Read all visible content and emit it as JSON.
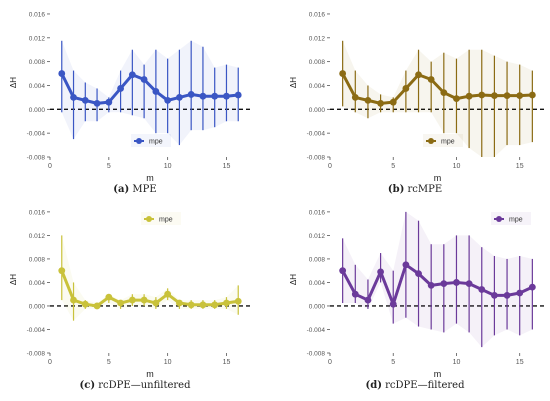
{
  "chart_data": [
    {
      "type": "line",
      "panel_label": "(a)",
      "panel_name": "MPE",
      "xlabel": "m",
      "ylabel": "ΔH",
      "xlim": [
        0,
        17
      ],
      "ylim": [
        -0.008,
        0.017
      ],
      "xticks": [
        0,
        5,
        10,
        15
      ],
      "yticks": [
        0.016,
        0.012,
        0.008,
        0.004,
        0.0,
        -0.004,
        -0.008
      ],
      "ytick_labels": [
        "0.016",
        "0.012",
        "0.008",
        "0.004",
        "0.000",
        "-0.004",
        "-0.008"
      ],
      "legend": "center-bottom",
      "reference_line": 0,
      "series": [
        {
          "name": "mpe",
          "color": "#3a56c4",
          "x": [
            1,
            2,
            3,
            4,
            5,
            6,
            7,
            8,
            9,
            10,
            11,
            12,
            13,
            14,
            15,
            16
          ],
          "y": [
            0.006,
            0.002,
            0.0015,
            0.001,
            0.0012,
            0.0035,
            0.0058,
            0.005,
            0.003,
            0.0015,
            0.002,
            0.0025,
            0.0022,
            0.0022,
            0.0022,
            0.0024
          ],
          "err_low": [
            -0.0005,
            -0.005,
            -0.002,
            -0.002,
            -0.0005,
            -0.0005,
            -0.001,
            -0.0015,
            -0.004,
            -0.004,
            -0.006,
            -0.0035,
            -0.0035,
            -0.003,
            -0.002,
            -0.002
          ],
          "err_high": [
            0.0115,
            0.0065,
            0.0045,
            0.0035,
            0.002,
            0.0065,
            0.01,
            0.0075,
            0.01,
            0.0085,
            0.01,
            0.0115,
            0.0105,
            0.007,
            0.0075,
            0.007
          ]
        }
      ]
    },
    {
      "type": "line",
      "panel_label": "(b)",
      "panel_name": "rcMPE",
      "xlabel": "m",
      "ylabel": "ΔH",
      "xlim": [
        0,
        17
      ],
      "ylim": [
        -0.008,
        0.017
      ],
      "xticks": [
        0,
        5,
        10,
        15
      ],
      "yticks": [
        0.016,
        0.012,
        0.008,
        0.004,
        0.0,
        -0.004,
        -0.008
      ],
      "ytick_labels": [
        "0.016",
        "0.012",
        "0.008",
        "0.004",
        "0.000",
        "-0.004",
        "-0.008"
      ],
      "legend": "center-bottom",
      "reference_line": 0,
      "series": [
        {
          "name": "mpe",
          "color": "#8b6b14",
          "x": [
            1,
            2,
            3,
            4,
            5,
            6,
            7,
            8,
            9,
            10,
            11,
            12,
            13,
            14,
            15,
            16
          ],
          "y": [
            0.006,
            0.002,
            0.0015,
            0.001,
            0.0012,
            0.0035,
            0.0058,
            0.005,
            0.0028,
            0.0018,
            0.0022,
            0.0024,
            0.0023,
            0.0023,
            0.0023,
            0.0024
          ],
          "err_low": [
            0.0005,
            -0.0005,
            -0.0015,
            -0.0005,
            -0.0005,
            -0.0005,
            -0.0005,
            -0.0005,
            -0.004,
            -0.004,
            -0.0065,
            -0.008,
            -0.008,
            -0.006,
            -0.006,
            -0.0055
          ],
          "err_high": [
            0.0115,
            0.0065,
            0.004,
            0.0025,
            0.002,
            0.0065,
            0.01,
            0.008,
            0.0095,
            0.0085,
            0.01,
            0.01,
            0.009,
            0.008,
            0.0075,
            0.0065
          ]
        }
      ]
    },
    {
      "type": "line",
      "panel_label": "(c)",
      "panel_name": "rcDPE—unfiltered",
      "xlabel": "m",
      "ylabel": "ΔH",
      "xlim": [
        0,
        17
      ],
      "ylim": [
        -0.008,
        0.017
      ],
      "xticks": [
        0,
        5,
        10,
        15
      ],
      "yticks": [
        0.016,
        0.012,
        0.008,
        0.004,
        0.0,
        -0.004,
        -0.008
      ],
      "ytick_labels": [
        "0.016",
        "0.012",
        "0.008",
        "0.004",
        "0.000",
        "-0.004",
        "-0.008"
      ],
      "legend": "top-center",
      "reference_line": 0,
      "series": [
        {
          "name": "mpe",
          "color": "#c9c23a",
          "x": [
            1,
            2,
            3,
            4,
            5,
            6,
            7,
            8,
            9,
            10,
            11,
            12,
            13,
            14,
            15,
            16
          ],
          "y": [
            0.006,
            0.001,
            0.0003,
            0.0,
            0.0015,
            0.0005,
            0.001,
            0.001,
            0.0005,
            0.002,
            0.0005,
            0.0002,
            0.0002,
            0.0002,
            0.0005,
            0.0008
          ],
          "err_low": [
            0.001,
            -0.0025,
            -0.0005,
            -0.0005,
            0.0005,
            -0.0005,
            0.0,
            0.0,
            -0.0005,
            0.001,
            -0.0005,
            -0.0005,
            -0.0005,
            -0.0005,
            -0.0005,
            -0.0015
          ],
          "err_high": [
            0.012,
            0.004,
            0.001,
            0.0005,
            0.002,
            0.001,
            0.002,
            0.002,
            0.0015,
            0.003,
            0.001,
            0.001,
            0.001,
            0.001,
            0.0015,
            0.0035
          ]
        }
      ]
    },
    {
      "type": "line",
      "panel_label": "(d)",
      "panel_name": "rcDPE—filtered",
      "xlabel": "m",
      "ylabel": "ΔH",
      "xlim": [
        0,
        17
      ],
      "ylim": [
        -0.008,
        0.017
      ],
      "xticks": [
        0,
        5,
        10,
        15
      ],
      "yticks": [
        0.016,
        0.012,
        0.008,
        0.004,
        0.0,
        -0.004,
        -0.008
      ],
      "ytick_labels": [
        "0.016",
        "0.012",
        "0.008",
        "0.004",
        "0.000",
        "-0.004",
        "-0.008"
      ],
      "legend": "top-right",
      "reference_line": 0,
      "series": [
        {
          "name": "mpe",
          "color": "#6b3a9a",
          "x": [
            1,
            2,
            3,
            4,
            5,
            6,
            7,
            8,
            9,
            10,
            11,
            12,
            13,
            14,
            15,
            16
          ],
          "y": [
            0.006,
            0.002,
            0.001,
            0.0058,
            0.0003,
            0.007,
            0.0055,
            0.0035,
            0.0038,
            0.004,
            0.0038,
            0.0028,
            0.0018,
            0.0018,
            0.0022,
            0.0032
          ],
          "err_low": [
            0.0005,
            0.0005,
            -0.0005,
            0.004,
            -0.003,
            -0.002,
            -0.0035,
            -0.004,
            -0.0045,
            -0.003,
            -0.0045,
            -0.007,
            -0.005,
            -0.004,
            -0.005,
            -0.004
          ],
          "err_high": [
            0.0115,
            0.007,
            0.0045,
            0.009,
            0.006,
            0.016,
            0.0145,
            0.0105,
            0.0105,
            0.012,
            0.012,
            0.01,
            0.0085,
            0.008,
            0.0085,
            0.008
          ]
        }
      ]
    }
  ]
}
